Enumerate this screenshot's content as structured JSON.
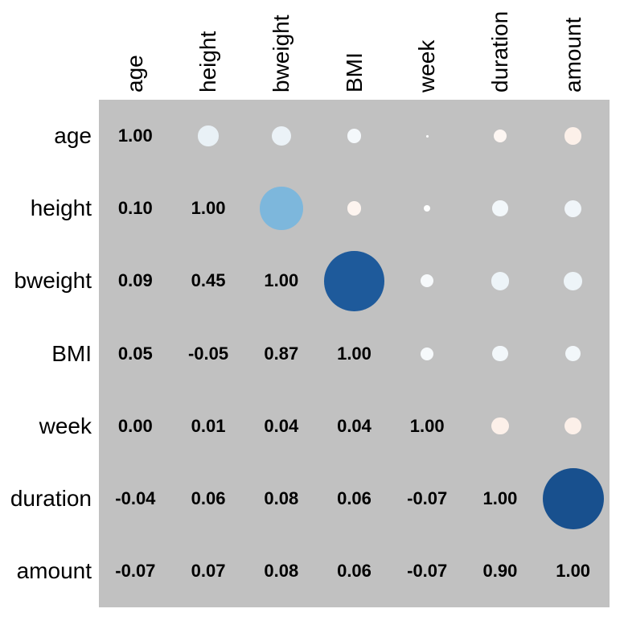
{
  "chart_data": {
    "type": "heatmap",
    "subtype": "correlation-matrix",
    "title": "",
    "variables": [
      "age",
      "height",
      "bweight",
      "BMI",
      "week",
      "duration",
      "amount"
    ],
    "matrix": [
      [
        1.0,
        0.1,
        0.09,
        0.05,
        0.0,
        -0.04,
        -0.07
      ],
      [
        0.1,
        1.0,
        0.45,
        -0.05,
        0.01,
        0.06,
        0.07
      ],
      [
        0.09,
        0.45,
        1.0,
        0.87,
        0.04,
        0.08,
        0.08
      ],
      [
        0.05,
        -0.05,
        0.87,
        1.0,
        0.04,
        0.06,
        0.06
      ],
      [
        0.0,
        0.01,
        0.04,
        0.04,
        1.0,
        -0.07,
        -0.07
      ],
      [
        -0.04,
        0.06,
        0.08,
        0.06,
        -0.07,
        1.0,
        0.9
      ],
      [
        -0.07,
        0.07,
        0.08,
        0.06,
        -0.07,
        0.9,
        1.0
      ]
    ],
    "layout": {
      "lower_triangle": "coefficients",
      "diagonal": "coefficients",
      "upper_triangle": "circles",
      "circle_size_rule": "radius proportional to sqrt(abs(r))",
      "legend": "none",
      "grid": "off"
    },
    "colors": {
      "panel_background": "#C1C1C1",
      "page_background": "#FFFFFF",
      "text": "#000000",
      "positive_scale": [
        {
          "value": 0.0,
          "rgb": [
            255,
            255,
            255
          ]
        },
        {
          "value": 0.1,
          "rgb": [
            233,
            241,
            246
          ]
        },
        {
          "value": 0.45,
          "rgb": [
            125,
            183,
            220
          ]
        },
        {
          "value": 0.87,
          "rgb": [
            30,
            90,
            155
          ]
        },
        {
          "value": 1.0,
          "rgb": [
            5,
            48,
            97
          ]
        }
      ],
      "negative_scale": [
        {
          "value": 0.0,
          "rgb": [
            255,
            255,
            255
          ]
        },
        {
          "value": 0.1,
          "rgb": [
            250,
            233,
            223
          ]
        },
        {
          "value": 0.45,
          "rgb": [
            244,
            165,
            130
          ]
        },
        {
          "value": 1.0,
          "rgb": [
            103,
            0,
            31
          ]
        }
      ]
    }
  }
}
